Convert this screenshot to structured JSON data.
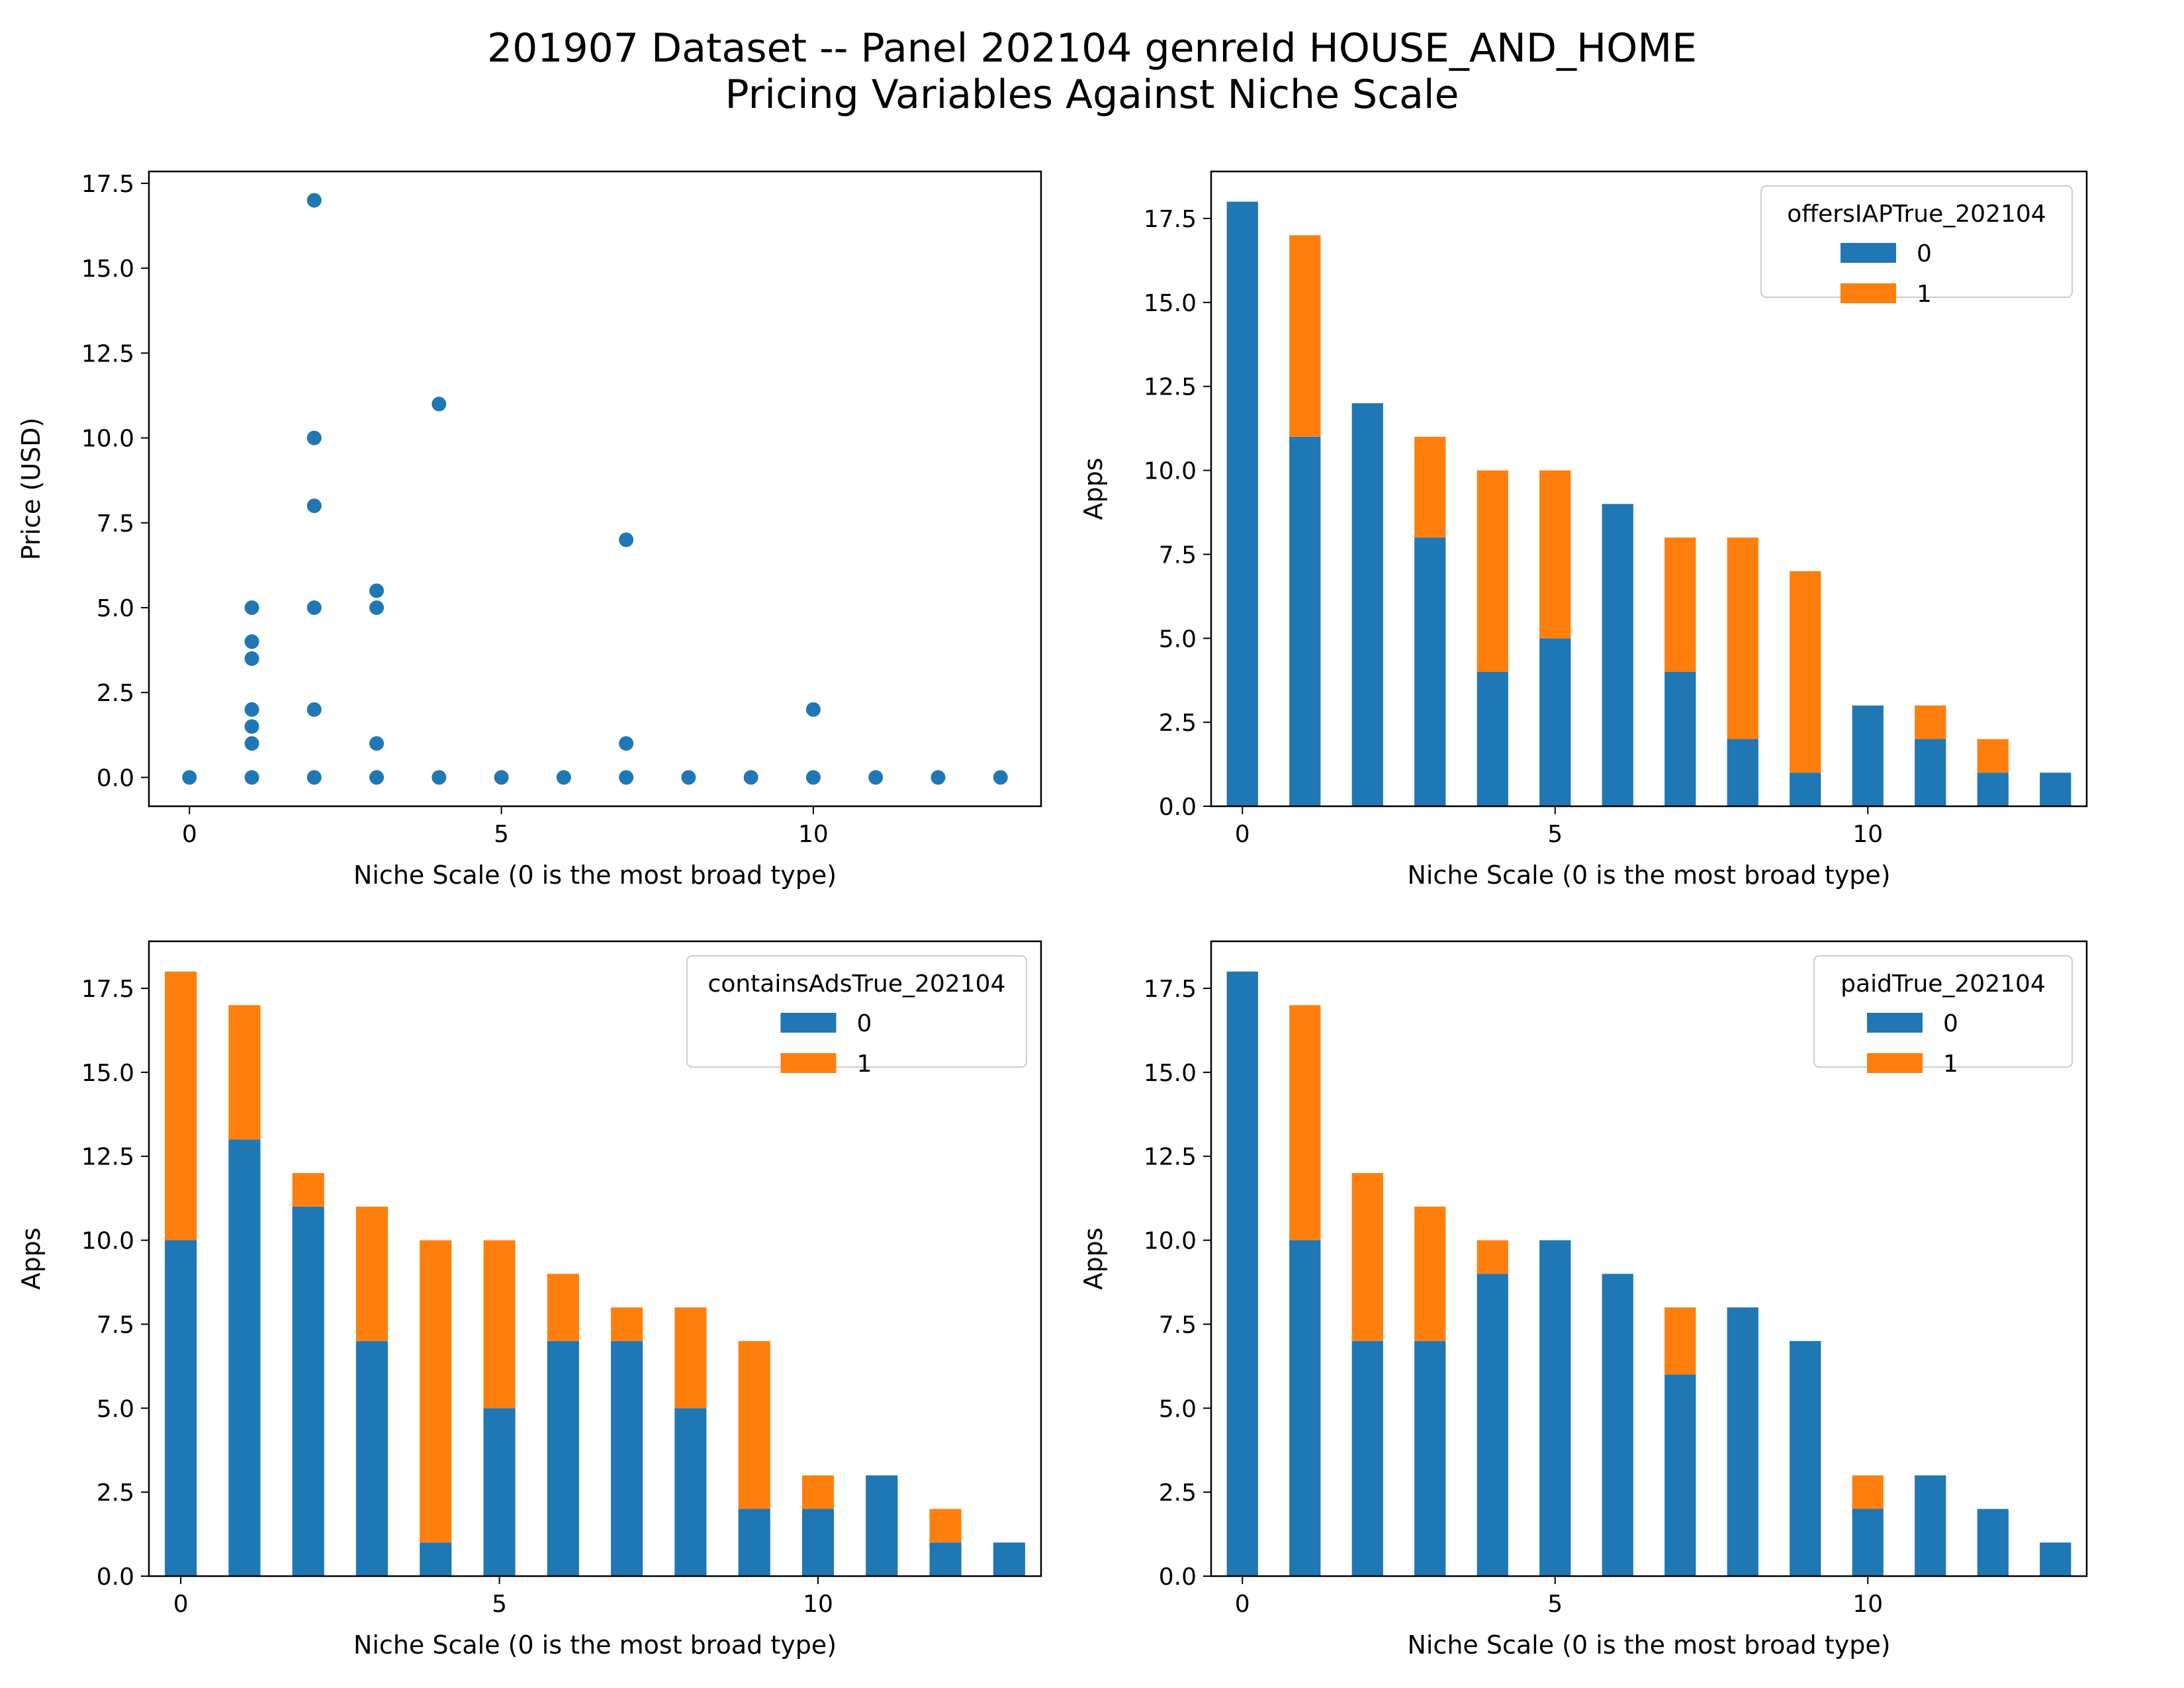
{
  "title_line1": "201907 Dataset -- Panel 202104 genreId HOUSE_AND_HOME",
  "title_line2": "Pricing Variables Against Niche Scale",
  "colors": {
    "series0": "#1f77b4",
    "series1": "#ff7f0e"
  },
  "chart_data": [
    {
      "type": "scatter",
      "xlabel": "Niche Scale (0 is the most broad type)",
      "ylabel": "Price (USD)",
      "xlim": [
        -0.65,
        13.65
      ],
      "ylim": [
        -0.85,
        17.85
      ],
      "xticks": [
        0,
        5,
        10
      ],
      "yticks": [
        0.0,
        2.5,
        5.0,
        7.5,
        10.0,
        12.5,
        15.0,
        17.5
      ],
      "points": [
        [
          0,
          0
        ],
        [
          1,
          0
        ],
        [
          1,
          1
        ],
        [
          1,
          1.5
        ],
        [
          1,
          2
        ],
        [
          1,
          3.5
        ],
        [
          1,
          4
        ],
        [
          1,
          5
        ],
        [
          2,
          0
        ],
        [
          2,
          2
        ],
        [
          2,
          5
        ],
        [
          2,
          8
        ],
        [
          2,
          10
        ],
        [
          2,
          17
        ],
        [
          3,
          0
        ],
        [
          3,
          1
        ],
        [
          3,
          5
        ],
        [
          3,
          5.5
        ],
        [
          4,
          0
        ],
        [
          4,
          11
        ],
        [
          5,
          0
        ],
        [
          6,
          0
        ],
        [
          7,
          0
        ],
        [
          7,
          1
        ],
        [
          7,
          7
        ],
        [
          8,
          0
        ],
        [
          9,
          0
        ],
        [
          10,
          0
        ],
        [
          10,
          2
        ],
        [
          11,
          0
        ],
        [
          12,
          0
        ],
        [
          13,
          0
        ]
      ]
    },
    {
      "type": "bar",
      "stacked": true,
      "xlabel": "Niche Scale (0 is the most broad type)",
      "ylabel": "Apps",
      "legend_title": "offersIAPTrue_202104",
      "legend_placement": "upper right",
      "categories": [
        0,
        1,
        2,
        3,
        4,
        5,
        6,
        7,
        8,
        9,
        10,
        11,
        12,
        13
      ],
      "xticks": [
        0,
        5,
        10
      ],
      "yticks": [
        0.0,
        2.5,
        5.0,
        7.5,
        10.0,
        12.5,
        15.0,
        17.5
      ],
      "ylim": [
        0,
        18.9
      ],
      "series": [
        {
          "name": "0",
          "values": [
            18,
            11,
            12,
            8,
            4,
            5,
            9,
            4,
            2,
            1,
            3,
            2,
            1,
            1
          ]
        },
        {
          "name": "1",
          "values": [
            0,
            6,
            0,
            3,
            6,
            5,
            0,
            4,
            6,
            6,
            0,
            1,
            1,
            0
          ]
        }
      ]
    },
    {
      "type": "bar",
      "stacked": true,
      "xlabel": "Niche Scale (0 is the most broad type)",
      "ylabel": "Apps",
      "legend_title": "containsAdsTrue_202104",
      "legend_placement": "upper right",
      "categories": [
        0,
        1,
        2,
        3,
        4,
        5,
        6,
        7,
        8,
        9,
        10,
        11,
        12,
        13
      ],
      "xticks": [
        0,
        5,
        10
      ],
      "yticks": [
        0.0,
        2.5,
        5.0,
        7.5,
        10.0,
        12.5,
        15.0,
        17.5
      ],
      "ylim": [
        0,
        18.9
      ],
      "series": [
        {
          "name": "0",
          "values": [
            10,
            13,
            11,
            7,
            1,
            5,
            7,
            7,
            5,
            2,
            2,
            3,
            1,
            1
          ]
        },
        {
          "name": "1",
          "values": [
            8,
            4,
            1,
            4,
            9,
            5,
            2,
            1,
            3,
            5,
            1,
            0,
            1,
            0
          ]
        }
      ]
    },
    {
      "type": "bar",
      "stacked": true,
      "xlabel": "Niche Scale (0 is the most broad type)",
      "ylabel": "Apps",
      "legend_title": "paidTrue_202104",
      "legend_placement": "upper right",
      "categories": [
        0,
        1,
        2,
        3,
        4,
        5,
        6,
        7,
        8,
        9,
        10,
        11,
        12,
        13
      ],
      "xticks": [
        0,
        5,
        10
      ],
      "yticks": [
        0.0,
        2.5,
        5.0,
        7.5,
        10.0,
        12.5,
        15.0,
        17.5
      ],
      "ylim": [
        0,
        18.9
      ],
      "series": [
        {
          "name": "0",
          "values": [
            18,
            10,
            7,
            7,
            9,
            10,
            9,
            6,
            8,
            7,
            2,
            3,
            2,
            1
          ]
        },
        {
          "name": "1",
          "values": [
            0,
            7,
            5,
            4,
            1,
            0,
            0,
            2,
            0,
            0,
            1,
            0,
            0,
            0
          ]
        }
      ]
    }
  ]
}
